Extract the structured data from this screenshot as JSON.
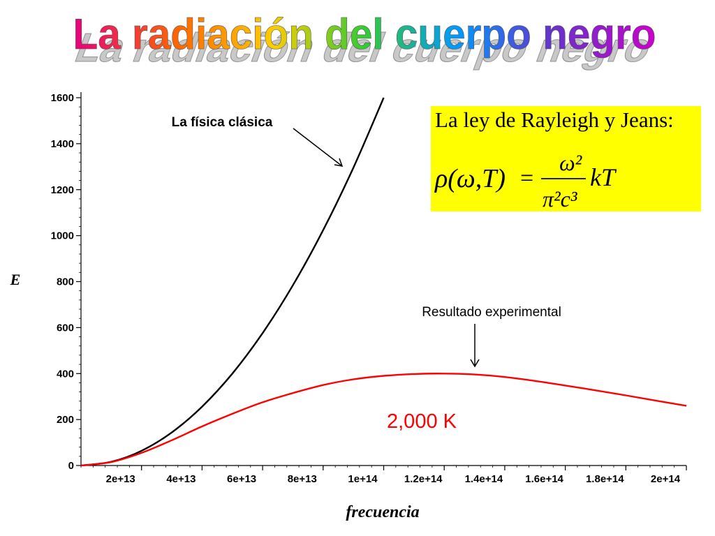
{
  "slide": {
    "title": "La radiación del cuerpo negro",
    "colors": {
      "black_curve": "#000000",
      "red_curve": "#ff0000",
      "box_fill": "#ffff00",
      "title_gradient": [
        "#e6007e",
        "#ff6600",
        "#ffcc00",
        "#33cc33",
        "#0099ff",
        "#6633cc",
        "#cc00cc"
      ]
    }
  },
  "formula": {
    "heading": "La ley de Rayleigh y Jeans:",
    "lhs": "ρ(ω,T)",
    "equals": "=",
    "numerator": "ω²",
    "denominator": "π²c³",
    "factor": "kT"
  },
  "annotations": {
    "classical": "La física clásica",
    "experimental": "Resultado experimental",
    "temperature": "2,000 K"
  },
  "chart_data": {
    "type": "line",
    "xlabel": "frecuencia",
    "ylabel": "E",
    "xlim": [
      0,
      200000000000000.0
    ],
    "ylim": [
      0,
      1600
    ],
    "x_ticks": [
      {
        "value": 20000000000000.0,
        "label": "2e+13"
      },
      {
        "value": 40000000000000.0,
        "label": "4e+13"
      },
      {
        "value": 60000000000000.0,
        "label": "6e+13"
      },
      {
        "value": 80000000000000.0,
        "label": "8e+13"
      },
      {
        "value": 100000000000000.0,
        "label": "1e+14"
      },
      {
        "value": 120000000000000.0,
        "label": "1.2e+14"
      },
      {
        "value": 140000000000000.0,
        "label": "1.4e+14"
      },
      {
        "value": 160000000000000.0,
        "label": "1.6e+14"
      },
      {
        "value": 180000000000000.0,
        "label": "1.8e+14"
      },
      {
        "value": 200000000000000.0,
        "label": "2e+14"
      }
    ],
    "y_ticks": [
      {
        "value": 0,
        "label": "0"
      },
      {
        "value": 200,
        "label": "200"
      },
      {
        "value": 400,
        "label": "400"
      },
      {
        "value": 600,
        "label": "600"
      },
      {
        "value": 800,
        "label": "800"
      },
      {
        "value": 1000,
        "label": "1000"
      },
      {
        "value": 1200,
        "label": "1200"
      },
      {
        "value": 1400,
        "label": "1400"
      },
      {
        "value": 1600,
        "label": "1600"
      }
    ],
    "series": [
      {
        "color": "#000000",
        "points": [
          [
            0,
            0
          ],
          [
            10000000000000.0,
            16
          ],
          [
            20000000000000.0,
            64
          ],
          [
            30000000000000.0,
            144
          ],
          [
            40000000000000.0,
            256
          ],
          [
            50000000000000.0,
            400
          ],
          [
            60000000000000.0,
            576
          ],
          [
            70000000000000.0,
            784
          ],
          [
            80000000000000.0,
            1024
          ],
          [
            90000000000000.0,
            1296
          ],
          [
            100000000000000.0,
            1600
          ]
        ]
      },
      {
        "color": "#ff0000",
        "points": [
          [
            0,
            0
          ],
          [
            10000000000000.0,
            15
          ],
          [
            20000000000000.0,
            55
          ],
          [
            30000000000000.0,
            110
          ],
          [
            40000000000000.0,
            170
          ],
          [
            50000000000000.0,
            225
          ],
          [
            60000000000000.0,
            275
          ],
          [
            70000000000000.0,
            315
          ],
          [
            80000000000000.0,
            350
          ],
          [
            90000000000000.0,
            375
          ],
          [
            100000000000000.0,
            390
          ],
          [
            110000000000000.0,
            398
          ],
          [
            120000000000000.0,
            400
          ],
          [
            130000000000000.0,
            396
          ],
          [
            140000000000000.0,
            385
          ],
          [
            150000000000000.0,
            368
          ],
          [
            160000000000000.0,
            348
          ],
          [
            170000000000000.0,
            327
          ],
          [
            180000000000000.0,
            305
          ],
          [
            190000000000000.0,
            282
          ],
          [
            200000000000000.0,
            260
          ]
        ]
      }
    ]
  }
}
